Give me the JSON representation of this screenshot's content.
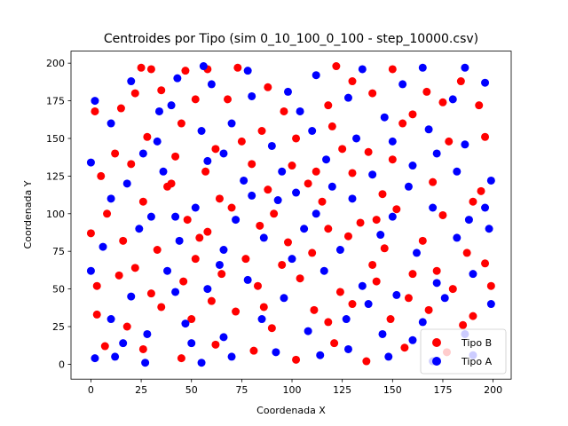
{
  "chart_data": {
    "type": "scatter",
    "title": "Centroides por Tipo (sim 0_10_100_0_100 - step_10000.csv)",
    "xlabel": "Coordenada X",
    "ylabel": "Coordenada Y",
    "xlim": [
      -9.9,
      209.0
    ],
    "ylim": [
      -9.9,
      208.0
    ],
    "xticks": [
      0,
      25,
      50,
      75,
      100,
      125,
      150,
      175,
      200
    ],
    "yticks": [
      0,
      25,
      50,
      75,
      100,
      125,
      150,
      175,
      200
    ],
    "legend_position": "lower-right",
    "grid": false,
    "series": [
      {
        "name": "Tipo B",
        "color": "#ff0000",
        "points": [
          [
            25,
            197
          ],
          [
            30,
            196
          ],
          [
            47,
            195
          ],
          [
            58,
            196
          ],
          [
            73,
            197
          ],
          [
            122,
            198
          ],
          [
            150,
            196
          ],
          [
            2,
            168
          ],
          [
            15,
            170
          ],
          [
            22,
            180
          ],
          [
            35,
            182
          ],
          [
            52,
            176
          ],
          [
            88,
            184
          ],
          [
            118,
            172
          ],
          [
            140,
            180
          ],
          [
            167,
            181
          ],
          [
            175,
            174
          ],
          [
            193,
            172
          ],
          [
            12,
            140
          ],
          [
            28,
            151
          ],
          [
            45,
            160
          ],
          [
            62,
            143
          ],
          [
            85,
            155
          ],
          [
            102,
            150
          ],
          [
            120,
            158
          ],
          [
            138,
            141
          ],
          [
            155,
            160
          ],
          [
            178,
            148
          ],
          [
            196,
            151
          ],
          [
            5,
            125
          ],
          [
            20,
            133
          ],
          [
            40,
            120
          ],
          [
            57,
            128
          ],
          [
            80,
            133
          ],
          [
            108,
            120
          ],
          [
            130,
            127
          ],
          [
            145,
            113
          ],
          [
            170,
            121
          ],
          [
            194,
            115
          ],
          [
            8,
            100
          ],
          [
            26,
            108
          ],
          [
            48,
            96
          ],
          [
            70,
            104
          ],
          [
            91,
            100
          ],
          [
            115,
            108
          ],
          [
            134,
            94
          ],
          [
            152,
            103
          ],
          [
            175,
            99
          ],
          [
            190,
            108
          ],
          [
            0,
            87
          ],
          [
            16,
            82
          ],
          [
            33,
            76
          ],
          [
            54,
            84
          ],
          [
            77,
            70
          ],
          [
            98,
            81
          ],
          [
            110,
            74
          ],
          [
            128,
            85
          ],
          [
            146,
            77
          ],
          [
            165,
            82
          ],
          [
            187,
            74
          ],
          [
            196,
            67
          ],
          [
            3,
            52
          ],
          [
            14,
            59
          ],
          [
            30,
            47
          ],
          [
            46,
            55
          ],
          [
            65,
            60
          ],
          [
            83,
            52
          ],
          [
            104,
            57
          ],
          [
            124,
            48
          ],
          [
            142,
            55
          ],
          [
            160,
            60
          ],
          [
            180,
            50
          ],
          [
            199,
            52
          ],
          [
            3,
            33
          ],
          [
            18,
            25
          ],
          [
            35,
            38
          ],
          [
            50,
            30
          ],
          [
            72,
            35
          ],
          [
            90,
            24
          ],
          [
            111,
            36
          ],
          [
            130,
            40
          ],
          [
            149,
            30
          ],
          [
            168,
            36
          ],
          [
            190,
            32
          ],
          [
            7,
            12
          ],
          [
            26,
            10
          ],
          [
            45,
            4
          ],
          [
            62,
            13
          ],
          [
            81,
            9
          ],
          [
            102,
            3
          ],
          [
            121,
            14
          ],
          [
            137,
            2
          ],
          [
            156,
            11
          ],
          [
            177,
            8
          ],
          [
            38,
            118
          ],
          [
            64,
            110
          ],
          [
            88,
            116
          ],
          [
            112,
            128
          ],
          [
            150,
            136
          ],
          [
            68,
            176
          ],
          [
            96,
            168
          ],
          [
            130,
            188
          ],
          [
            160,
            166
          ],
          [
            184,
            188
          ],
          [
            42,
            138
          ],
          [
            75,
            148
          ],
          [
            100,
            132
          ],
          [
            125,
            143
          ],
          [
            58,
            88
          ],
          [
            84,
            92
          ],
          [
            118,
            90
          ],
          [
            142,
            96
          ],
          [
            22,
            64
          ],
          [
            52,
            70
          ],
          [
            95,
            66
          ],
          [
            140,
            66
          ],
          [
            172,
            62
          ],
          [
            60,
            42
          ],
          [
            86,
            38
          ],
          [
            118,
            28
          ],
          [
            158,
            44
          ],
          [
            185,
            26
          ]
        ]
      },
      {
        "name": "Tipo A",
        "color": "#0000ff",
        "points": [
          [
            43,
            190
          ],
          [
            56,
            198
          ],
          [
            78,
            195
          ],
          [
            112,
            192
          ],
          [
            135,
            196
          ],
          [
            165,
            197
          ],
          [
            186,
            197
          ],
          [
            2,
            175
          ],
          [
            20,
            188
          ],
          [
            40,
            172
          ],
          [
            60,
            186
          ],
          [
            80,
            178
          ],
          [
            98,
            181
          ],
          [
            128,
            177
          ],
          [
            155,
            186
          ],
          [
            180,
            176
          ],
          [
            196,
            187
          ],
          [
            10,
            160
          ],
          [
            33,
            148
          ],
          [
            55,
            155
          ],
          [
            70,
            160
          ],
          [
            90,
            145
          ],
          [
            110,
            155
          ],
          [
            132,
            150
          ],
          [
            150,
            148
          ],
          [
            168,
            156
          ],
          [
            186,
            146
          ],
          [
            0,
            134
          ],
          [
            18,
            120
          ],
          [
            36,
            128
          ],
          [
            58,
            135
          ],
          [
            76,
            122
          ],
          [
            95,
            128
          ],
          [
            117,
            136
          ],
          [
            140,
            126
          ],
          [
            160,
            132
          ],
          [
            182,
            128
          ],
          [
            199,
            122
          ],
          [
            10,
            110
          ],
          [
            30,
            98
          ],
          [
            52,
            104
          ],
          [
            72,
            96
          ],
          [
            93,
            109
          ],
          [
            112,
            100
          ],
          [
            130,
            110
          ],
          [
            150,
            98
          ],
          [
            170,
            104
          ],
          [
            188,
            96
          ],
          [
            6,
            78
          ],
          [
            24,
            90
          ],
          [
            44,
            82
          ],
          [
            66,
            76
          ],
          [
            86,
            84
          ],
          [
            106,
            90
          ],
          [
            124,
            76
          ],
          [
            144,
            86
          ],
          [
            162,
            74
          ],
          [
            182,
            84
          ],
          [
            198,
            90
          ],
          [
            0,
            62
          ],
          [
            20,
            45
          ],
          [
            38,
            62
          ],
          [
            58,
            50
          ],
          [
            78,
            56
          ],
          [
            96,
            44
          ],
          [
            116,
            62
          ],
          [
            135,
            52
          ],
          [
            152,
            46
          ],
          [
            172,
            54
          ],
          [
            190,
            60
          ],
          [
            10,
            30
          ],
          [
            28,
            20
          ],
          [
            47,
            27
          ],
          [
            66,
            18
          ],
          [
            85,
            30
          ],
          [
            108,
            22
          ],
          [
            127,
            30
          ],
          [
            145,
            20
          ],
          [
            165,
            28
          ],
          [
            186,
            20
          ],
          [
            2,
            4
          ],
          [
            12,
            5
          ],
          [
            27,
            1
          ],
          [
            55,
            1
          ],
          [
            70,
            5
          ],
          [
            92,
            8
          ],
          [
            114,
            6
          ],
          [
            148,
            5
          ],
          [
            170,
            2
          ],
          [
            190,
            6
          ],
          [
            34,
            168
          ],
          [
            66,
            140
          ],
          [
            104,
            168
          ],
          [
            146,
            164
          ],
          [
            172,
            140
          ],
          [
            26,
            140
          ],
          [
            80,
            112
          ],
          [
            120,
            118
          ],
          [
            158,
            118
          ],
          [
            196,
            104
          ],
          [
            42,
            48
          ],
          [
            64,
            66
          ],
          [
            100,
            70
          ],
          [
            138,
            40
          ],
          [
            176,
            44
          ],
          [
            16,
            14
          ],
          [
            50,
            14
          ],
          [
            128,
            10
          ],
          [
            160,
            16
          ],
          [
            199,
            40
          ],
          [
            42,
            98
          ],
          [
            102,
            114
          ]
        ]
      }
    ]
  }
}
